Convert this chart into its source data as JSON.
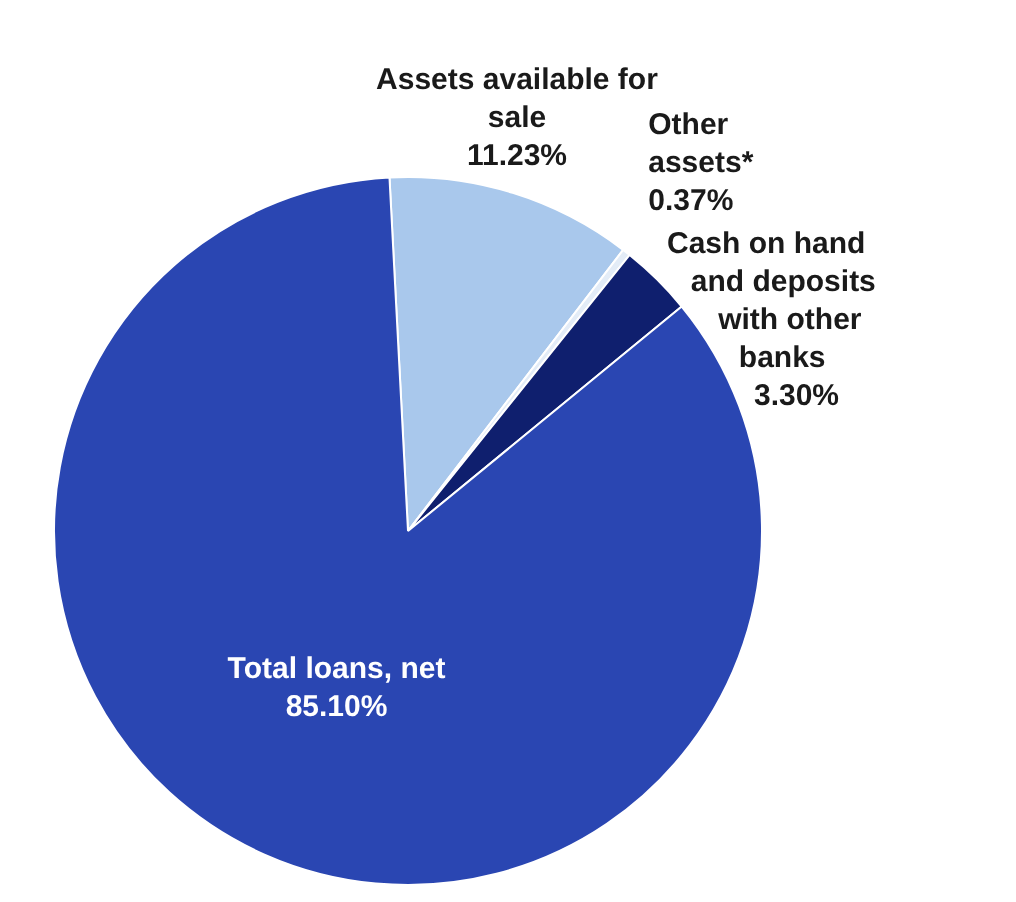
{
  "chart_data": {
    "type": "pie",
    "categories": [
      "Assets available for sale",
      "Other assets*",
      "Cash on hand and deposits with other banks",
      "Total loans, net"
    ],
    "values": [
      11.23,
      0.37,
      3.3,
      85.1
    ],
    "value_labels": [
      "11.23%",
      "0.37%",
      "3.30%",
      "85.10%"
    ],
    "colors": [
      "#a9c8ec",
      "#e3ecf7",
      "#0f1f6e",
      "#2a46b2"
    ],
    "legend": false
  }
}
